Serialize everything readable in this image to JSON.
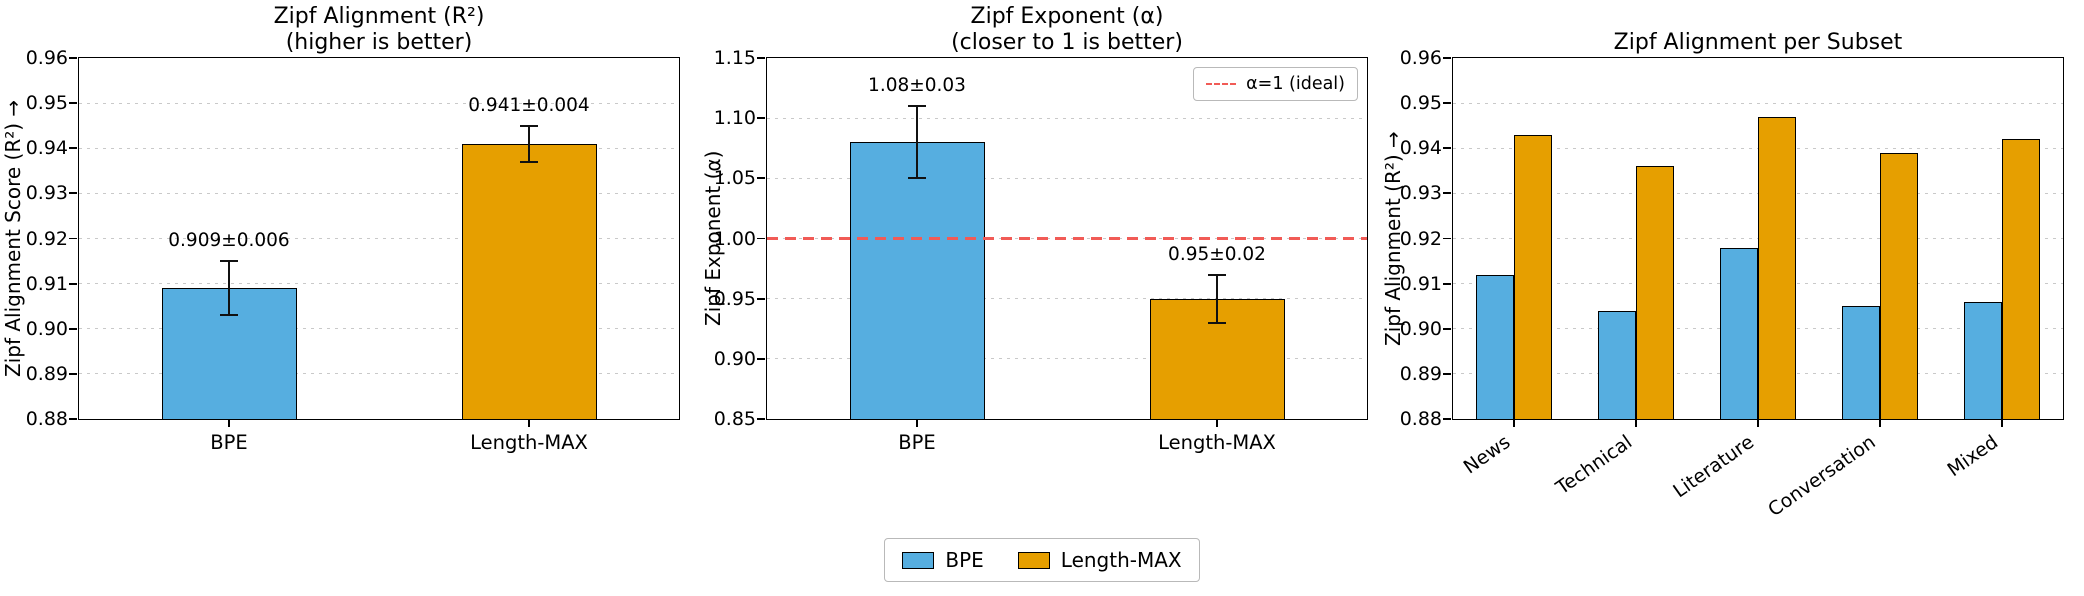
{
  "colors": {
    "bpe": "#56AEE0",
    "length_max": "#E69F00",
    "ideal": "#F15B56",
    "grid": "#c9c9c9",
    "axis": "#000000",
    "background": "#ffffff"
  },
  "legend": {
    "position": "bottom-center",
    "items": [
      {
        "label": "BPE",
        "color_key": "bpe"
      },
      {
        "label": "Length-MAX",
        "color_key": "length_max"
      }
    ]
  },
  "chart_data": [
    {
      "type": "bar",
      "title_lines": [
        "Zipf Alignment (R²)",
        "(higher is better)"
      ],
      "ylabel": "Zipf Alignment Score (R²) →",
      "xlabel": "",
      "categories": [
        "BPE",
        "Length-MAX"
      ],
      "series": [
        {
          "name": "values",
          "values": [
            0.909,
            0.941
          ]
        }
      ],
      "errors": [
        0.006,
        0.004
      ],
      "bar_labels": [
        "0.909±0.006",
        "0.941±0.004"
      ],
      "bar_colors": [
        "bpe",
        "length_max"
      ],
      "ylim": [
        0.88,
        0.96
      ],
      "yticks": [
        0.88,
        0.89,
        0.9,
        0.91,
        0.92,
        0.93,
        0.94,
        0.95,
        0.96
      ],
      "ytick_labels": [
        "0.88",
        "0.89",
        "0.90",
        "0.91",
        "0.92",
        "0.93",
        "0.94",
        "0.95",
        "0.96"
      ],
      "grid": true
    },
    {
      "type": "bar",
      "title_lines": [
        "Zipf Exponent (α)",
        "(closer to 1 is better)"
      ],
      "ylabel": "Zipf Exponent (α)",
      "xlabel": "",
      "categories": [
        "BPE",
        "Length-MAX"
      ],
      "series": [
        {
          "name": "values",
          "values": [
            1.08,
            0.95
          ]
        }
      ],
      "errors": [
        0.03,
        0.02
      ],
      "bar_labels": [
        "1.08±0.03",
        "0.95±0.02"
      ],
      "bar_colors": [
        "bpe",
        "length_max"
      ],
      "ylim": [
        0.85,
        1.15
      ],
      "yticks": [
        0.85,
        0.9,
        0.95,
        1.0,
        1.05,
        1.1,
        1.15
      ],
      "ytick_labels": [
        "0.85",
        "0.90",
        "0.95",
        "1.00",
        "1.05",
        "1.10",
        "1.15"
      ],
      "ref_line": {
        "value": 1.0,
        "label": "α=1 (ideal)",
        "color_key": "ideal",
        "style": "dashed"
      },
      "grid": true
    },
    {
      "type": "bar",
      "title_lines": [
        "Zipf Alignment per Subset"
      ],
      "ylabel": "Zipf Alignment (R²) →",
      "xlabel": "",
      "categories": [
        "News",
        "Technical",
        "Literature",
        "Conversation",
        "Mixed"
      ],
      "series": [
        {
          "name": "BPE",
          "color_key": "bpe",
          "values": [
            0.912,
            0.904,
            0.918,
            0.905,
            0.906
          ]
        },
        {
          "name": "Length-MAX",
          "color_key": "length_max",
          "values": [
            0.943,
            0.936,
            0.947,
            0.939,
            0.942
          ]
        }
      ],
      "ylim": [
        0.88,
        0.96
      ],
      "yticks": [
        0.88,
        0.89,
        0.9,
        0.91,
        0.92,
        0.93,
        0.94,
        0.95,
        0.96
      ],
      "ytick_labels": [
        "0.88",
        "0.89",
        "0.90",
        "0.91",
        "0.92",
        "0.93",
        "0.94",
        "0.95",
        "0.96"
      ],
      "rotate_xticks": true,
      "grid": true
    }
  ]
}
